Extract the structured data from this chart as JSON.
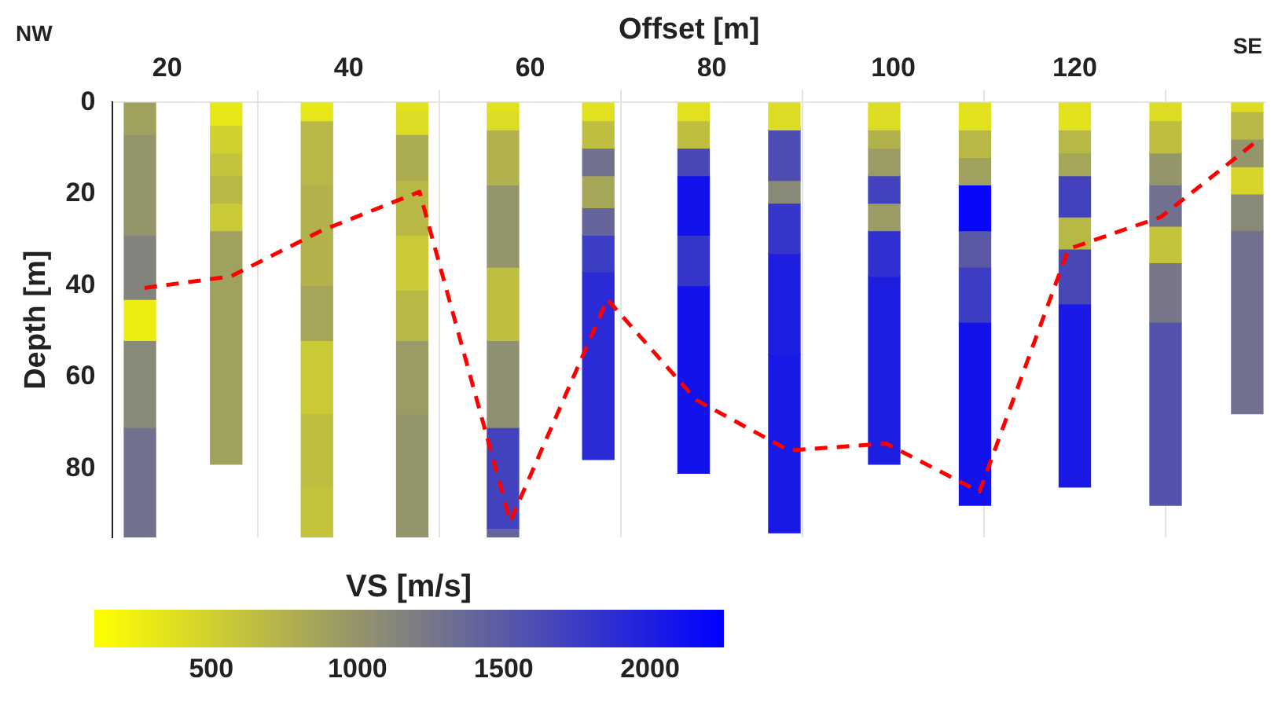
{
  "chart_data": {
    "type": "bar",
    "xlabel": "Offset [m]",
    "ylabel": "Depth [m]",
    "clabel": "VS [m/s]",
    "clim": [
      100,
      2250
    ],
    "cticks": [
      500,
      1000,
      1500,
      2000
    ],
    "xlim": [
      14,
      141
    ],
    "xticks": [
      20,
      40,
      60,
      80,
      100,
      120
    ],
    "ylim": [
      95,
      0
    ],
    "yticks": [
      0,
      20,
      40,
      60,
      80
    ],
    "grid": "x",
    "legend": false,
    "annotations": [
      "NW",
      "SE"
    ],
    "x": [
      17,
      26.5,
      36.5,
      47,
      57,
      67.5,
      78,
      88,
      99,
      109,
      120,
      130,
      139
    ],
    "series": [
      {
        "base": [
          0,
          0,
          0,
          0,
          0,
          0,
          0,
          0,
          0,
          0,
          0,
          0,
          0
        ],
        "values": [
          7,
          5,
          4,
          2,
          2,
          4,
          4,
          6,
          6,
          6,
          6,
          4,
          2
        ],
        "colors": [
          "#a0a05f",
          "#e7e718",
          "#e7e718",
          "#e1e11e",
          "#e1e11e",
          "#e1e11e",
          "#e1e11e",
          "#dcdc24",
          "#dcdc24",
          "#e1e11e",
          "#e1e11e",
          "#dcdc24",
          "#dcdc24"
        ]
      },
      {
        "base": [
          7,
          5,
          4,
          2,
          2,
          4,
          4,
          6,
          6,
          6,
          6,
          4,
          2
        ],
        "values": [
          22,
          6,
          14,
          5,
          4,
          6,
          6,
          11,
          4,
          6,
          5,
          7,
          6
        ],
        "colors": [
          "#95956b",
          "#d0d030",
          "#b8b847",
          "#dcdc24",
          "#dcdc24",
          "#bebe41",
          "#bebe41",
          "#4d4db2",
          "#b2b24d",
          "#b8b847",
          "#b8b847",
          "#bebe41",
          "#b8b847"
        ]
      },
      {
        "base": [
          29,
          11,
          18,
          7,
          6,
          10,
          10,
          17,
          10,
          12,
          11,
          11,
          8
        ],
        "values": [
          14,
          5,
          22,
          10,
          12,
          6,
          6,
          5,
          6,
          6,
          5,
          7,
          6
        ],
        "colors": [
          "#83837d",
          "#c4c43c",
          "#b2b24d",
          "#acac53",
          "#b2b24d",
          "#71718f",
          "#4747b8",
          "#898977",
          "#9b9b65",
          "#a0a05f",
          "#a6a659",
          "#95956b",
          "#95956b"
        ]
      },
      {
        "base": [
          43,
          16,
          40,
          17,
          18,
          16,
          16,
          22,
          16,
          18,
          16,
          18,
          14
        ],
        "values": [
          9,
          6,
          12,
          12,
          18,
          7,
          13,
          11,
          6,
          10,
          9,
          9,
          6
        ],
        "colors": [
          "#eded12",
          "#b8b847",
          "#a6a659",
          "#b8b847",
          "#95956b",
          "#a6a659",
          "#1212ed",
          "#3636ca",
          "#4242be",
          "#0606f9",
          "#4242be",
          "#71718f",
          "#d6d62a"
        ]
      },
      {
        "base": [
          52,
          22,
          52,
          29,
          36,
          23,
          29,
          33,
          22,
          28,
          25,
          27,
          20
        ],
        "values": [
          19,
          6,
          16,
          12,
          16,
          6,
          11,
          22,
          6,
          8,
          7,
          8,
          8
        ],
        "colors": [
          "#898977",
          "#caca36",
          "#caca36",
          "#caca36",
          "#bebe41",
          "#65659b",
          "#3636ca",
          "#1e1ee1",
          "#9b9b65",
          "#5959a6",
          "#b8b847",
          "#c4c43c",
          "#898977"
        ]
      },
      {
        "base": [
          71,
          28,
          68,
          41,
          52,
          29,
          40,
          55,
          28,
          36,
          32,
          35,
          28
        ],
        "values": [
          24,
          51,
          16,
          11,
          19,
          8,
          41,
          39,
          10,
          12,
          12,
          13,
          40
        ],
        "colors": [
          "#71718f",
          "#a0a05f",
          "#bebe41",
          "#b8b847",
          "#8f8f71",
          "#3c3cc4",
          "#1212ed",
          "#1818e7",
          "#3030d0",
          "#3c3cc4",
          "#4747b8",
          "#777789",
          "#71718f"
        ]
      },
      {
        "base": [
          null,
          null,
          84,
          52,
          71,
          37,
          null,
          null,
          38,
          48,
          44,
          48,
          null
        ],
        "values": [
          null,
          null,
          11,
          16,
          22,
          41,
          null,
          null,
          41,
          40,
          40,
          40,
          null
        ],
        "colors": [
          null,
          null,
          "#c4c43c",
          "#9b9b65",
          "#4242be",
          "#2a2ad6",
          null,
          null,
          "#1e1ee1",
          "#1212ed",
          "#1818e7",
          "#5353ac",
          null
        ]
      },
      {
        "base": [
          null,
          null,
          null,
          68,
          93,
          null,
          null,
          null,
          null,
          null,
          null,
          null,
          null
        ],
        "values": [
          null,
          null,
          null,
          27,
          2,
          null,
          null,
          null,
          null,
          null,
          null,
          null,
          null
        ],
        "colors": [
          null,
          null,
          null,
          "#95956b",
          "#65659b",
          null,
          null,
          null,
          null,
          null,
          null,
          null,
          null
        ]
      },
      {
        "type": "line",
        "color": "#ff0000",
        "line_style": "dashed",
        "marker": "none",
        "x": [
          17.5,
          27,
          37,
          47.8,
          57.8,
          68.5,
          78.3,
          88.5,
          99.2,
          109.5,
          119.3,
          129.5,
          139.7
        ],
        "values": [
          40.5,
          38,
          28,
          19.5,
          91.5,
          43,
          65,
          76,
          74.5,
          85,
          32,
          25,
          9
        ]
      }
    ]
  }
}
